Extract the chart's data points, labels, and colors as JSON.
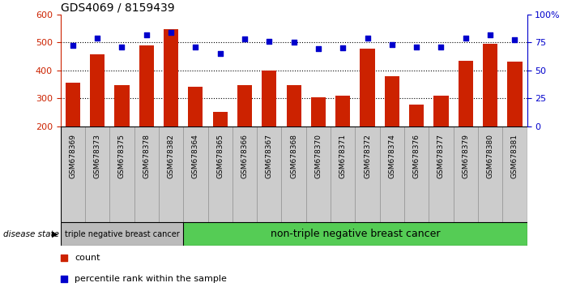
{
  "title": "GDS4069 / 8159439",
  "samples": [
    "GSM678369",
    "GSM678373",
    "GSM678375",
    "GSM678378",
    "GSM678382",
    "GSM678364",
    "GSM678365",
    "GSM678366",
    "GSM678367",
    "GSM678368",
    "GSM678370",
    "GSM678371",
    "GSM678372",
    "GSM678374",
    "GSM678376",
    "GSM678377",
    "GSM678379",
    "GSM678380",
    "GSM678381"
  ],
  "counts": [
    355,
    457,
    348,
    490,
    548,
    340,
    252,
    348,
    400,
    348,
    305,
    308,
    478,
    380,
    278,
    308,
    435,
    495,
    430
  ],
  "percentiles": [
    72,
    79,
    71,
    82,
    84,
    71,
    65,
    78,
    76,
    75,
    69,
    70,
    79,
    73,
    71,
    71,
    79,
    82,
    77
  ],
  "group1_count": 5,
  "group1_label": "triple negative breast cancer",
  "group2_label": "non-triple negative breast cancer",
  "ylim_left": [
    200,
    600
  ],
  "ylim_right": [
    0,
    100
  ],
  "yticks_left": [
    200,
    300,
    400,
    500,
    600
  ],
  "yticks_right": [
    0,
    25,
    50,
    75,
    100
  ],
  "bar_color": "#cc2200",
  "dot_color": "#0000cc",
  "group1_bg": "#bbbbbb",
  "group2_bg": "#55cc55",
  "tick_bg_color": "#cccccc",
  "legend_count_label": "count",
  "legend_pct_label": "percentile rank within the sample",
  "disease_state_label": "disease state",
  "hline_values": [
    300,
    400,
    500
  ]
}
